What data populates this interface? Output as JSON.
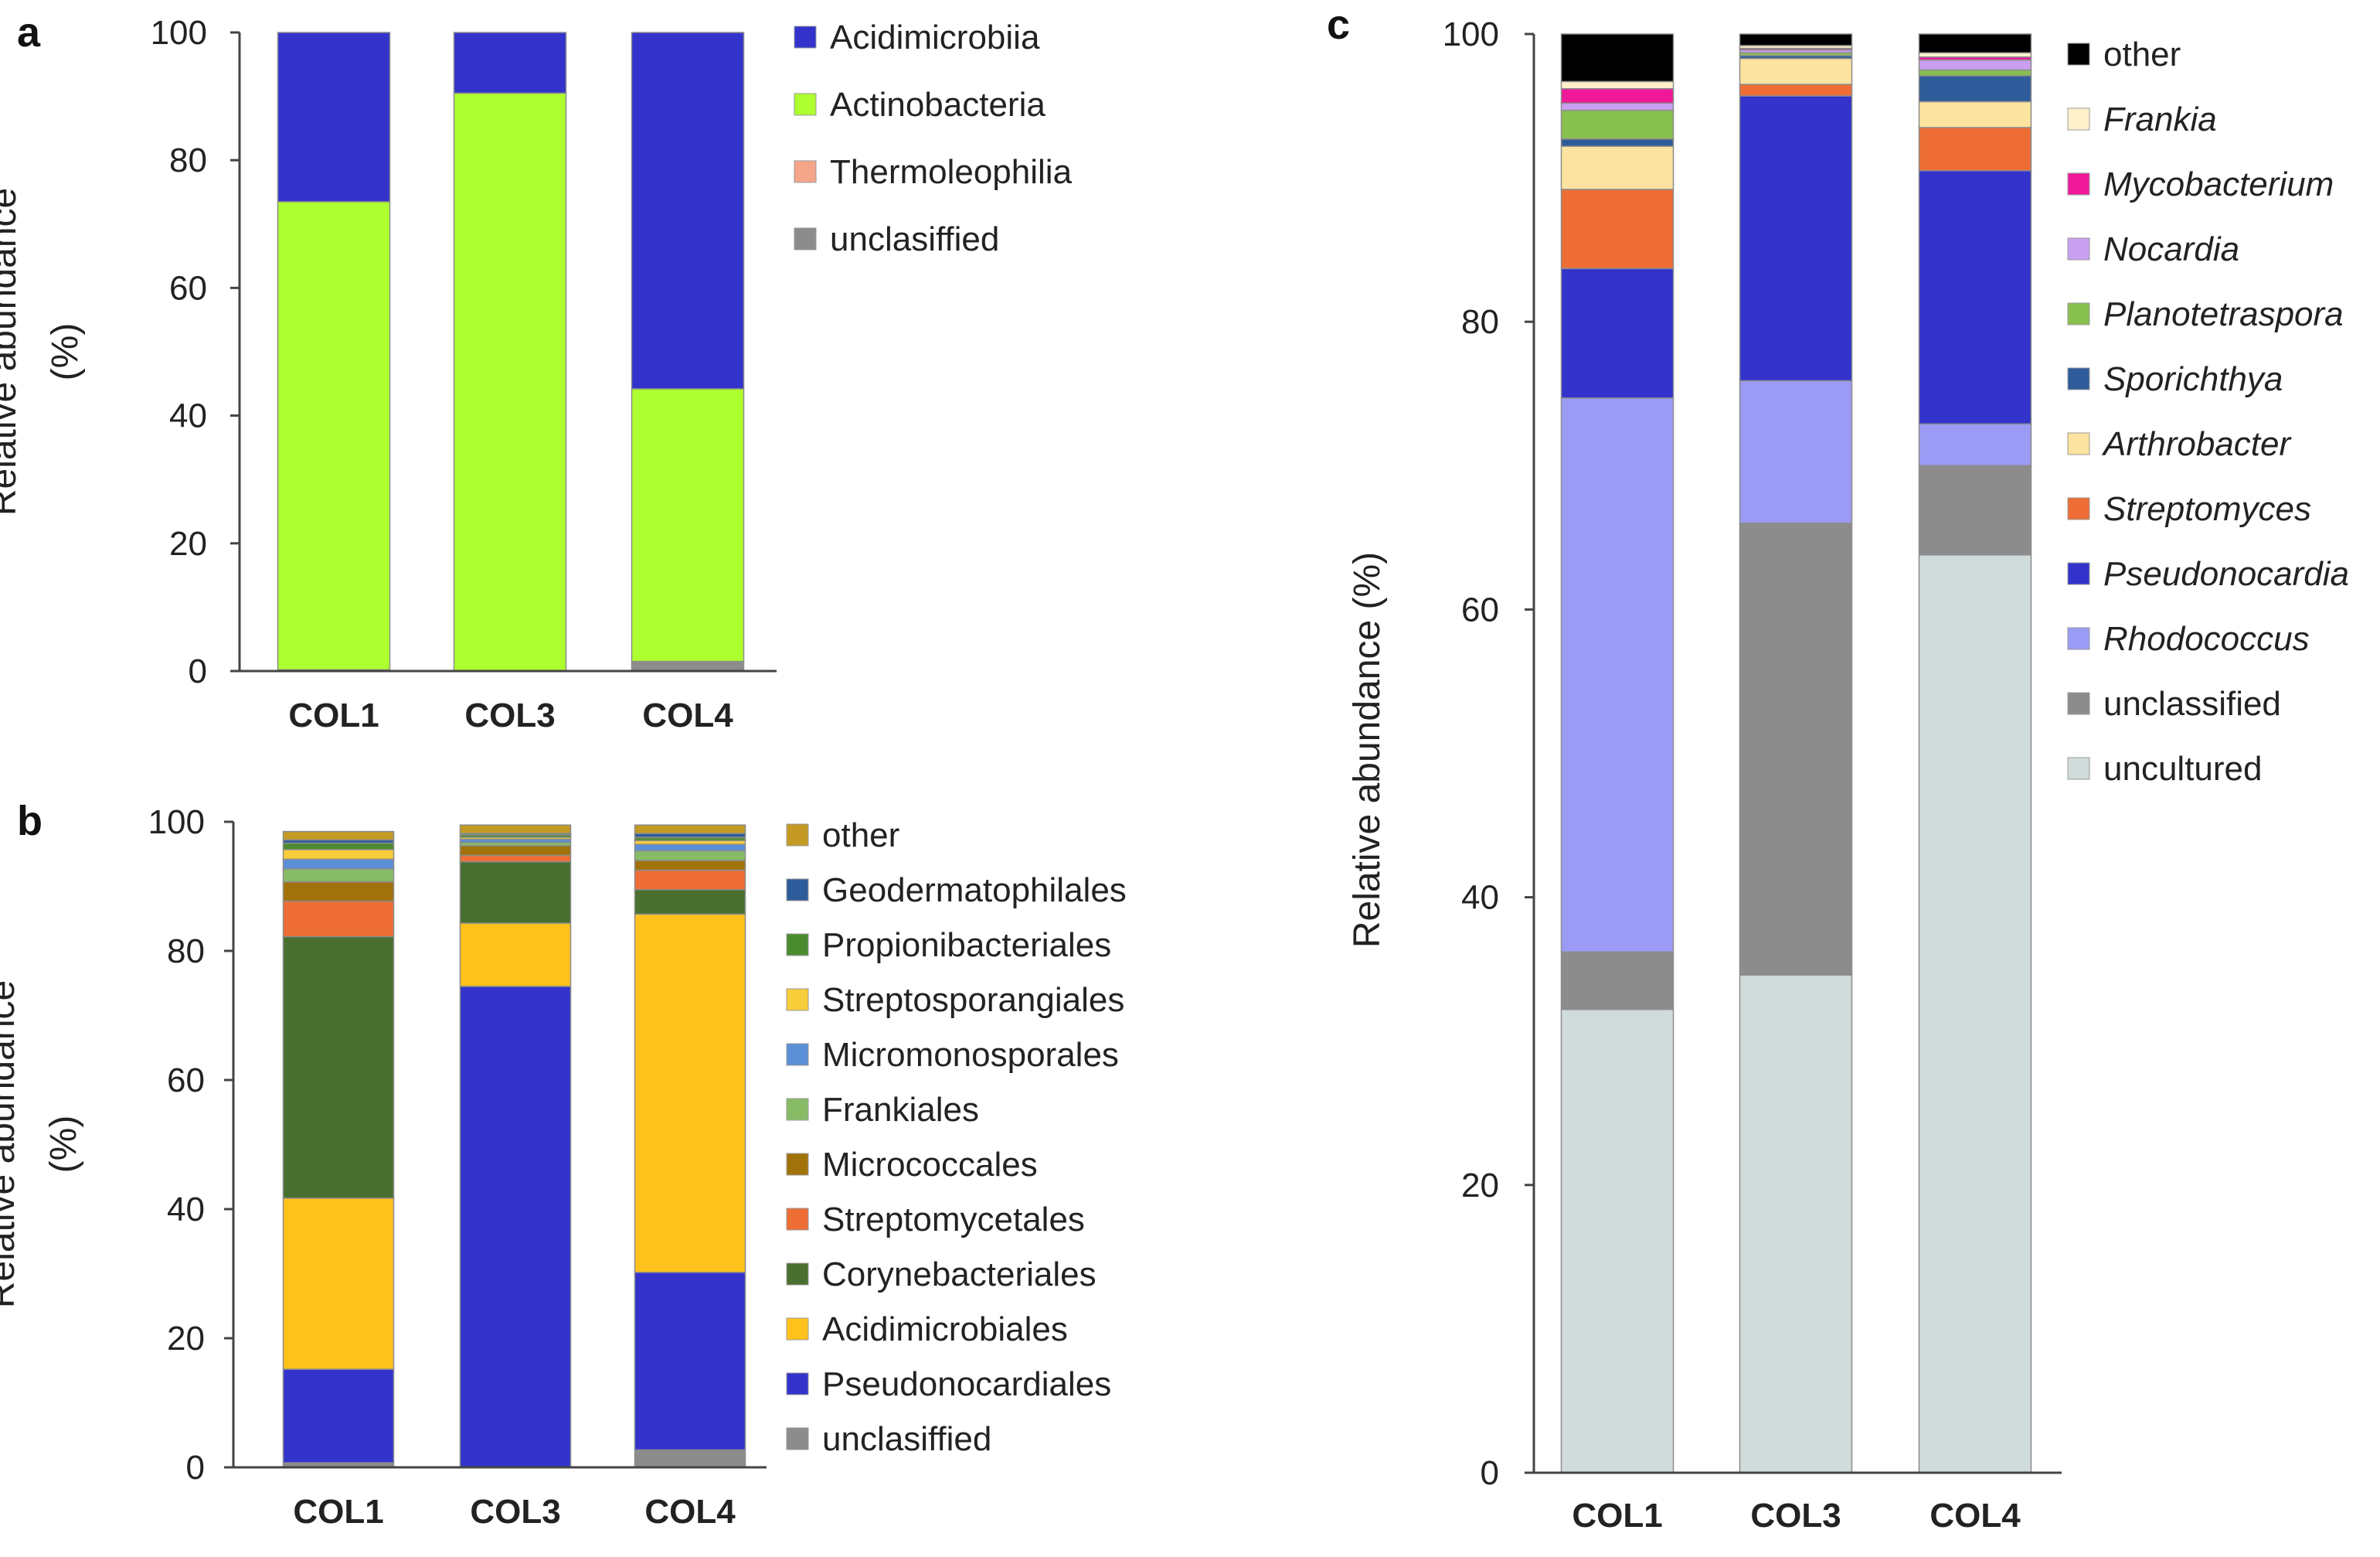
{
  "chart_data": [
    {
      "id": "a",
      "type": "bar",
      "stacked": true,
      "panel_label": "a",
      "title": "",
      "xlabel": "",
      "ylabel_lines": [
        "Relative abundance",
        "(%)"
      ],
      "ylim": [
        0,
        100
      ],
      "yticks": [
        0,
        20,
        40,
        60,
        80,
        100
      ],
      "categories": [
        "COL1",
        "COL3",
        "COL4"
      ],
      "series": [
        {
          "name": "unclasiffied",
          "color": "#8c8c8c",
          "values": [
            0.2,
            0,
            1.5
          ]
        },
        {
          "name": "Thermoleophilia",
          "color": "#f4a58a",
          "values": [
            0,
            0,
            0
          ]
        },
        {
          "name": "Actinobacteria",
          "color": "#adff2f",
          "values": [
            73.3,
            90.5,
            42.7
          ]
        },
        {
          "name": "Acidimicrobiia",
          "color": "#3333cc",
          "values": [
            26.5,
            9.5,
            55.8
          ]
        }
      ],
      "legend": [
        {
          "label": "Acidimicrobiia",
          "color": "#3333cc",
          "italic": false
        },
        {
          "label": "Actinobacteria",
          "color": "#adff2f",
          "italic": false
        },
        {
          "label": "Thermoleophilia",
          "color": "#f4a58a",
          "italic": false
        },
        {
          "label": "unclasiffied",
          "color": "#8c8c8c",
          "italic": false
        }
      ]
    },
    {
      "id": "b",
      "type": "bar",
      "stacked": true,
      "panel_label": "b",
      "title": "",
      "xlabel": "",
      "ylabel_lines": [
        "Relative abundance",
        "(%)"
      ],
      "ylim": [
        0,
        100
      ],
      "yticks": [
        0,
        20,
        40,
        60,
        80,
        100
      ],
      "categories": [
        "COL1",
        "COL3",
        "COL4"
      ],
      "series": [
        {
          "name": "unclasiffied",
          "color": "#8c8c8c",
          "values": [
            0.7,
            0,
            2.7
          ]
        },
        {
          "name": "Pseudonocardiales",
          "color": "#3333cc",
          "values": [
            14.5,
            74.5,
            27.5
          ]
        },
        {
          "name": "Acidimicrobiales",
          "color": "#ffc21c",
          "values": [
            26.5,
            9.8,
            55.5
          ]
        },
        {
          "name": "Corynebacteriales",
          "color": "#4a6f2f",
          "values": [
            40.5,
            9.5,
            3.8
          ]
        },
        {
          "name": "Streptomycetales",
          "color": "#ed6d35",
          "values": [
            5.5,
            1.0,
            3.0
          ]
        },
        {
          "name": "Micrococcales",
          "color": "#a2720a",
          "values": [
            3.0,
            1.5,
            1.5
          ]
        },
        {
          "name": "Frankiales",
          "color": "#88bb66",
          "values": [
            2.0,
            0.5,
            1.5
          ]
        },
        {
          "name": "Micromonosporales",
          "color": "#5b8fd6",
          "values": [
            1.5,
            0.5,
            1.0
          ]
        },
        {
          "name": "Streptosporangiales",
          "color": "#f8cd3a",
          "values": [
            1.5,
            0.3,
            0.6
          ]
        },
        {
          "name": "Propionibacteriales",
          "color": "#4b8b30",
          "values": [
            1.0,
            0.4,
            0.5
          ]
        },
        {
          "name": "Geodermatophilales",
          "color": "#2e5c9a",
          "values": [
            0.5,
            0.2,
            0.6
          ]
        },
        {
          "name": "other",
          "color": "#c49a24",
          "values": [
            1.3,
            1.3,
            1.3
          ]
        }
      ],
      "legend": [
        {
          "label": "other",
          "color": "#c49a24",
          "italic": false
        },
        {
          "label": "Geodermatophilales",
          "color": "#2e5c9a",
          "italic": false
        },
        {
          "label": "Propionibacteriales",
          "color": "#4b8b30",
          "italic": false
        },
        {
          "label": "Streptosporangiales",
          "color": "#f8cd3a",
          "italic": false
        },
        {
          "label": "Micromonosporales",
          "color": "#5b8fd6",
          "italic": false
        },
        {
          "label": "Frankiales",
          "color": "#88bb66",
          "italic": false
        },
        {
          "label": "Micrococcales",
          "color": "#a2720a",
          "italic": false
        },
        {
          "label": "Streptomycetales",
          "color": "#ed6d35",
          "italic": false
        },
        {
          "label": "Corynebacteriales",
          "color": "#4a6f2f",
          "italic": false
        },
        {
          "label": "Acidimicrobiales",
          "color": "#ffc21c",
          "italic": false
        },
        {
          "label": "Pseudonocardiales",
          "color": "#3333cc",
          "italic": false
        },
        {
          "label": "unclasiffied",
          "color": "#8c8c8c",
          "italic": false
        }
      ]
    },
    {
      "id": "c",
      "type": "bar",
      "stacked": true,
      "panel_label": "c",
      "title": "",
      "xlabel": "",
      "ylabel_lines": [
        "Relative abundance (%)"
      ],
      "ylim": [
        0,
        100
      ],
      "yticks": [
        0,
        20,
        40,
        60,
        80,
        100
      ],
      "categories": [
        "COL1",
        "COL3",
        "COL4"
      ],
      "series": [
        {
          "name": "uncultured",
          "color": "#cfdcdb",
          "values": [
            32.2,
            34.6,
            63.8
          ]
        },
        {
          "name": "unclassified",
          "color": "#8c8c8c",
          "values": [
            4.0,
            31.4,
            6.2
          ]
        },
        {
          "name": "Rhodococcus",
          "color": "#9b9bf5",
          "values": [
            38.5,
            9.9,
            2.9
          ]
        },
        {
          "name": "Pseudonocardia",
          "color": "#3333cc",
          "values": [
            9.0,
            19.8,
            17.6
          ]
        },
        {
          "name": "Streptomyces",
          "color": "#ed6d35",
          "values": [
            5.5,
            0.8,
            3.0
          ]
        },
        {
          "name": "Arthrobacter",
          "color": "#fde3a0",
          "values": [
            3.0,
            1.8,
            1.8
          ]
        },
        {
          "name": "Sporichthya",
          "color": "#2e5c9a",
          "values": [
            0.5,
            0.2,
            1.8
          ]
        },
        {
          "name": "Planotetraspora",
          "color": "#88c050",
          "values": [
            2.0,
            0.2,
            0.4
          ]
        },
        {
          "name": "Nocardia",
          "color": "#c9a0f0",
          "values": [
            0.5,
            0.2,
            0.7
          ]
        },
        {
          "name": "Mycobacterium",
          "color": "#ee1899",
          "values": [
            1.0,
            0.1,
            0.2
          ]
        },
        {
          "name": "Frankia",
          "color": "#fff1cc",
          "values": [
            0.5,
            0.2,
            0.3
          ]
        },
        {
          "name": "other",
          "color": "#000000",
          "values": [
            3.3,
            0.8,
            1.3
          ]
        }
      ],
      "legend": [
        {
          "label": "other",
          "color": "#000000",
          "italic": false
        },
        {
          "label": "Frankia",
          "color": "#fff1cc",
          "italic": true
        },
        {
          "label": "Mycobacterium",
          "color": "#ee1899",
          "italic": true
        },
        {
          "label": "Nocardia",
          "color": "#c9a0f0",
          "italic": true
        },
        {
          "label": "Planotetraspora",
          "color": "#88c050",
          "italic": true
        },
        {
          "label": "Sporichthya",
          "color": "#2e5c9a",
          "italic": true
        },
        {
          "label": "Arthrobacter",
          "color": "#fde3a0",
          "italic": true
        },
        {
          "label": "Streptomyces",
          "color": "#ed6d35",
          "italic": true
        },
        {
          "label": "Pseudonocardia",
          "color": "#3333cc",
          "italic": true
        },
        {
          "label": "Rhodococcus",
          "color": "#9b9bf5",
          "italic": true
        },
        {
          "label": "unclassified",
          "color": "#8c8c8c",
          "italic": false
        },
        {
          "label": "uncultured",
          "color": "#cfdcdb",
          "italic": false
        }
      ]
    }
  ]
}
